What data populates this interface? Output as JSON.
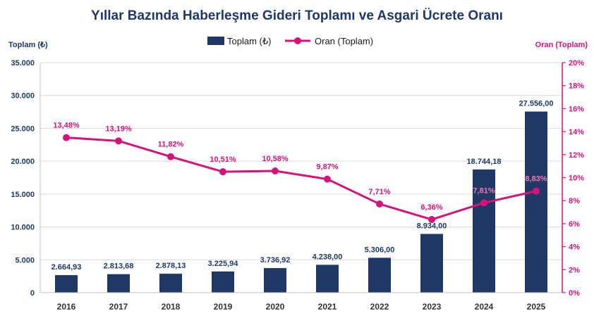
{
  "chart_data": {
    "type": "bar",
    "title": "Yıllar Bazında Haberleşme Gideri Toplamı ve Asgari Ücrete Oranı",
    "ylabel": "Toplam (₺)",
    "y2label": "Oran (Toplam)",
    "categories": [
      "2016",
      "2017",
      "2018",
      "2019",
      "2020",
      "2021",
      "2022",
      "2023",
      "2024",
      "2025"
    ],
    "ylim": [
      0,
      35000
    ],
    "y_ticks": [
      0,
      5000,
      10000,
      15000,
      20000,
      25000,
      30000,
      35000
    ],
    "y_tick_labels": [
      "0",
      "5.000",
      "10.000",
      "15.000",
      "20.000",
      "25.000",
      "30.000",
      "35.000"
    ],
    "y2lim": [
      0,
      20
    ],
    "y2_ticks": [
      0,
      2,
      4,
      6,
      8,
      10,
      12,
      14,
      16,
      18,
      20
    ],
    "y2_tick_labels": [
      "0%",
      "2%",
      "4%",
      "6%",
      "8%",
      "10%",
      "12%",
      "14%",
      "16%",
      "18%",
      "20%"
    ],
    "grid": true,
    "legend_position": "top-center",
    "series": [
      {
        "name": "Toplam (₺)",
        "type": "bar",
        "axis": "left",
        "color": "#1f3864",
        "values": [
          2664.93,
          2813.68,
          2878.13,
          3225.94,
          3736.92,
          4238.0,
          5306.0,
          8934.0,
          18744.18,
          27556.0
        ],
        "labels": [
          "2.664,93",
          "2.813,68",
          "2.878,13",
          "3.225,94",
          "3.736,92",
          "4.238,00",
          "5.306,00",
          "8.934,00",
          "18.744,18",
          "27.556,00"
        ]
      },
      {
        "name": "Oran (Toplam)",
        "type": "line",
        "axis": "right",
        "color": "#d4147a",
        "values": [
          13.48,
          13.19,
          11.82,
          10.51,
          10.58,
          9.87,
          7.71,
          6.36,
          7.81,
          8.83
        ],
        "labels": [
          "13,48%",
          "13,19%",
          "11,82%",
          "10,51%",
          "10,58%",
          "9,87%",
          "7,71%",
          "6,36%",
          "7,81%",
          "8,83%"
        ]
      }
    ]
  }
}
